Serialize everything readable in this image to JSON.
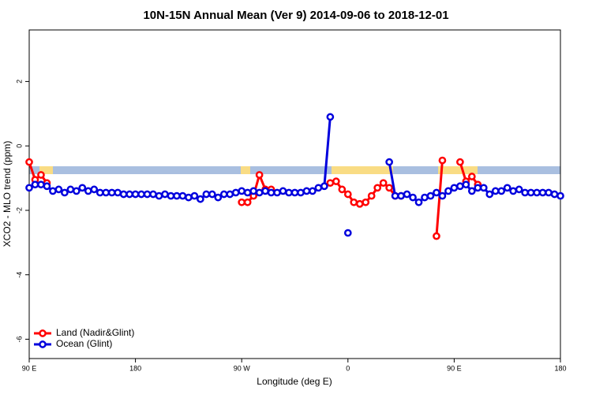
{
  "chart_data": {
    "type": "line",
    "title": "10N-15N Annual Mean (Ver 9)   2014-09-06 to 2018-12-01",
    "x_label": "Longitude (deg E)",
    "y_label": "XCO2 - MLO trend (ppm)",
    "x": [
      90,
      95,
      100,
      105,
      110,
      115,
      120,
      125,
      130,
      135,
      140,
      145,
      150,
      155,
      160,
      165,
      170,
      175,
      180,
      185,
      190,
      195,
      200,
      205,
      210,
      215,
      220,
      225,
      230,
      235,
      240,
      245,
      250,
      255,
      260,
      265,
      270,
      275,
      280,
      285,
      290,
      295,
      300,
      305,
      310,
      315,
      320,
      325,
      330,
      335,
      340,
      345,
      350,
      355,
      360,
      365,
      370,
      375,
      380,
      385,
      390,
      395,
      400,
      405,
      410,
      415,
      420,
      425,
      430,
      435,
      440,
      445,
      450,
      455,
      460,
      465,
      470,
      475,
      480,
      485,
      490,
      495,
      500,
      505,
      510,
      515,
      520,
      525,
      530,
      535,
      540
    ],
    "xlim": [
      90,
      540
    ],
    "xticks": [
      {
        "value": 90,
        "label": "90 E"
      },
      {
        "value": 180,
        "label": "180"
      },
      {
        "value": 270,
        "label": "90 W"
      },
      {
        "value": 360,
        "label": "0"
      },
      {
        "value": 450,
        "label": "90 E"
      },
      {
        "value": 540,
        "label": "180"
      }
    ],
    "ylim": [
      -6.6,
      3.6
    ],
    "yticks": [
      -6,
      -4,
      -2,
      0,
      2
    ],
    "legend": "bottom-left",
    "series": [
      {
        "name": "Land (Nadir&Glint)",
        "color": "#ff0000",
        "values": [
          -0.5,
          -1.05,
          -0.9,
          -1.15,
          null,
          null,
          null,
          null,
          null,
          null,
          null,
          null,
          null,
          null,
          null,
          null,
          null,
          null,
          null,
          null,
          null,
          null,
          null,
          null,
          null,
          null,
          null,
          null,
          null,
          null,
          null,
          null,
          null,
          null,
          null,
          null,
          -1.75,
          -1.75,
          -1.55,
          -0.9,
          -1.35,
          -1.35,
          null,
          null,
          null,
          null,
          null,
          null,
          null,
          null,
          null,
          -1.15,
          -1.1,
          -1.35,
          -1.5,
          -1.75,
          -1.8,
          -1.75,
          -1.55,
          -1.3,
          -1.15,
          -1.3,
          -1.55,
          -1.55,
          null,
          null,
          null,
          null,
          null,
          -2.8,
          -0.45,
          null,
          null,
          -0.5,
          -1.1,
          -0.95,
          -1.2,
          null,
          null,
          null,
          null,
          null,
          null,
          null,
          null,
          null,
          null,
          null,
          null,
          null,
          null
        ]
      },
      {
        "name": "Ocean (Glint)",
        "color": "#0000dd",
        "values": [
          -1.3,
          -1.2,
          -1.2,
          -1.25,
          -1.4,
          -1.35,
          -1.45,
          -1.35,
          -1.4,
          -1.3,
          -1.4,
          -1.35,
          -1.45,
          -1.45,
          -1.45,
          -1.45,
          -1.5,
          -1.5,
          -1.5,
          -1.5,
          -1.5,
          -1.5,
          -1.55,
          -1.5,
          -1.55,
          -1.55,
          -1.55,
          -1.6,
          -1.55,
          -1.65,
          -1.5,
          -1.5,
          -1.6,
          -1.5,
          -1.5,
          -1.45,
          -1.4,
          -1.45,
          -1.4,
          -1.45,
          -1.4,
          -1.45,
          -1.45,
          -1.4,
          -1.45,
          -1.45,
          -1.45,
          -1.4,
          -1.4,
          -1.3,
          -1.25,
          0.9,
          null,
          null,
          -2.7,
          null,
          null,
          null,
          null,
          null,
          null,
          -0.5,
          -1.55,
          -1.55,
          -1.5,
          -1.6,
          -1.75,
          -1.6,
          -1.55,
          -1.45,
          -1.55,
          -1.4,
          -1.3,
          -1.25,
          -1.2,
          -1.4,
          -1.3,
          -1.3,
          -1.5,
          -1.4,
          -1.4,
          -1.3,
          -1.4,
          -1.35,
          -1.45,
          -1.45,
          -1.45,
          -1.45,
          -1.45,
          -1.5,
          -1.55
        ]
      }
    ]
  }
}
